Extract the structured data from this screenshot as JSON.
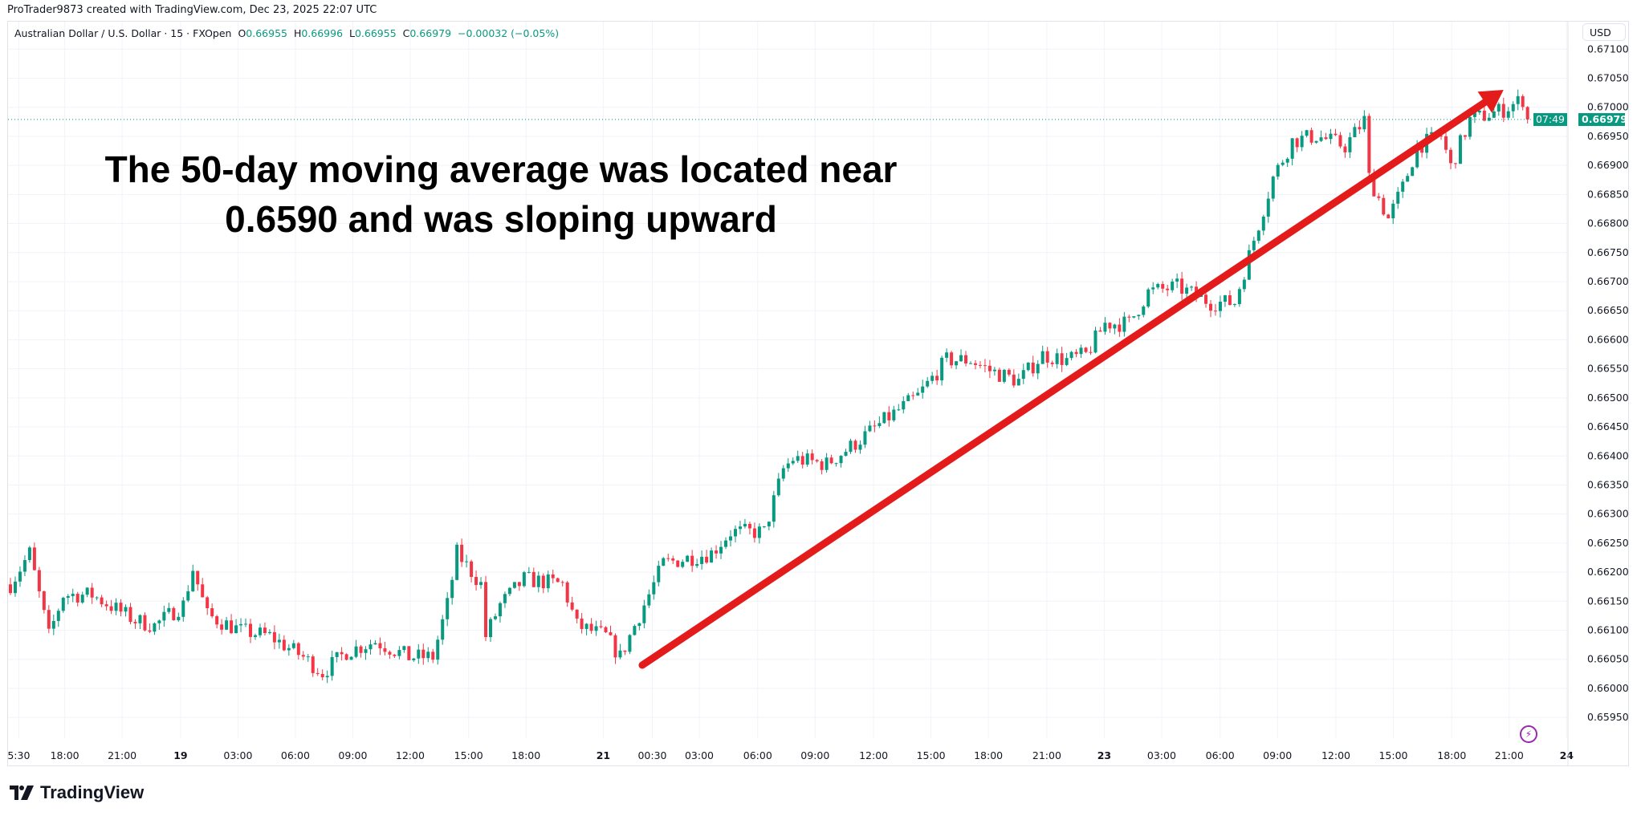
{
  "header": {
    "credit": "ProTrader9873 created with TradingView.com, Dec 23, 2025 22:07 UTC"
  },
  "legend": {
    "symbol": "Australian Dollar / U.S. Dollar · 15 · FXOpen",
    "o_label": "O",
    "o": "0.66955",
    "h_label": "H",
    "h": "0.66996",
    "l_label": "L",
    "l": "0.66955",
    "c_label": "C",
    "c": "0.66979",
    "change": "−0.00032 (−0.05%)"
  },
  "currency_button": "USD",
  "last_price": {
    "price": "0.66979",
    "countdown": "07:49"
  },
  "annotation": {
    "line1": "The 50-day moving average was located near",
    "line2": "0.6590 and was sloping upward"
  },
  "logo": {
    "text": "TradingView"
  },
  "colors": {
    "up": "#089981",
    "down": "#f23645",
    "arrow": "#e31b1b",
    "grid": "#f0f3fa"
  },
  "chart_data": {
    "type": "candlestick",
    "title": "Australian Dollar / U.S. Dollar · 15 · FXOpen",
    "interval_minutes": 15,
    "ylim": [
      0.6593,
      0.6711
    ],
    "y_ticks": [
      "0.67100",
      "0.67050",
      "0.67000",
      "0.66950",
      "0.66900",
      "0.66850",
      "0.66800",
      "0.66750",
      "0.66700",
      "0.66650",
      "0.66600",
      "0.66550",
      "0.66500",
      "0.66450",
      "0.66400",
      "0.66350",
      "0.66300",
      "0.66250",
      "0.66200",
      "0.66150",
      "0.66100",
      "0.66050",
      "0.66000",
      "0.65950"
    ],
    "x_ticks": [
      "5:30",
      "18:00",
      "21:00",
      "19",
      "03:00",
      "06:00",
      "09:00",
      "12:00",
      "15:00",
      "18:00",
      "21",
      "00:30",
      "03:00",
      "06:00",
      "09:00",
      "12:00",
      "15:00",
      "18:00",
      "21:00",
      "23",
      "03:00",
      "06:00",
      "09:00",
      "12:00",
      "15:00",
      "18:00",
      "21:00",
      "24"
    ],
    "close_path": [
      [
        0,
        0.66179
      ],
      [
        4,
        0.66233
      ],
      [
        8,
        0.6609
      ],
      [
        11,
        0.66161
      ],
      [
        17,
        0.66161
      ],
      [
        26,
        0.66117
      ],
      [
        30,
        0.66108
      ],
      [
        36,
        0.66144
      ],
      [
        38,
        0.66206
      ],
      [
        41,
        0.66126
      ],
      [
        48,
        0.66099
      ],
      [
        54,
        0.6609
      ],
      [
        61,
        0.66054
      ],
      [
        65,
        0.66027
      ],
      [
        70,
        0.66063
      ],
      [
        76,
        0.66081
      ],
      [
        83,
        0.66054
      ],
      [
        88,
        0.66054
      ],
      [
        91,
        0.66144
      ],
      [
        93,
        0.66233
      ],
      [
        98,
        0.66179
      ],
      [
        99,
        0.6609
      ],
      [
        102,
        0.66144
      ],
      [
        107,
        0.66188
      ],
      [
        115,
        0.66179
      ],
      [
        118,
        0.66108
      ],
      [
        124,
        0.6609
      ],
      [
        127,
        0.66054
      ],
      [
        130,
        0.66108
      ],
      [
        136,
        0.66215
      ],
      [
        146,
        0.66233
      ],
      [
        150,
        0.66269
      ],
      [
        157,
        0.66269
      ],
      [
        161,
        0.66377
      ],
      [
        163,
        0.66395
      ],
      [
        170,
        0.66386
      ],
      [
        176,
        0.66422
      ],
      [
        183,
        0.66467
      ],
      [
        189,
        0.66503
      ],
      [
        195,
        0.66565
      ],
      [
        200,
        0.66565
      ],
      [
        204,
        0.66547
      ],
      [
        210,
        0.66529
      ],
      [
        215,
        0.66574
      ],
      [
        220,
        0.66565
      ],
      [
        224,
        0.66574
      ],
      [
        228,
        0.66628
      ],
      [
        233,
        0.66628
      ],
      [
        237,
        0.66682
      ],
      [
        243,
        0.66691
      ],
      [
        250,
        0.66664
      ],
      [
        255,
        0.66664
      ],
      [
        259,
        0.66772
      ],
      [
        263,
        0.66879
      ],
      [
        267,
        0.66942
      ],
      [
        272,
        0.66951
      ],
      [
        278,
        0.66933
      ],
      [
        282,
        0.66978
      ],
      [
        283,
        0.66879
      ],
      [
        287,
        0.66808
      ],
      [
        290,
        0.66862
      ],
      [
        293,
        0.66933
      ],
      [
        298,
        0.66951
      ],
      [
        300,
        0.66897
      ],
      [
        304,
        0.66978
      ],
      [
        311,
        0.66996
      ],
      [
        315,
        0.67014
      ],
      [
        316,
        0.66979
      ]
    ],
    "last_close": 0.66979,
    "annotation_arrow": {
      "from": [
        2,
        0.6604
      ],
      "to": [
        311,
        0.6703
      ]
    }
  }
}
